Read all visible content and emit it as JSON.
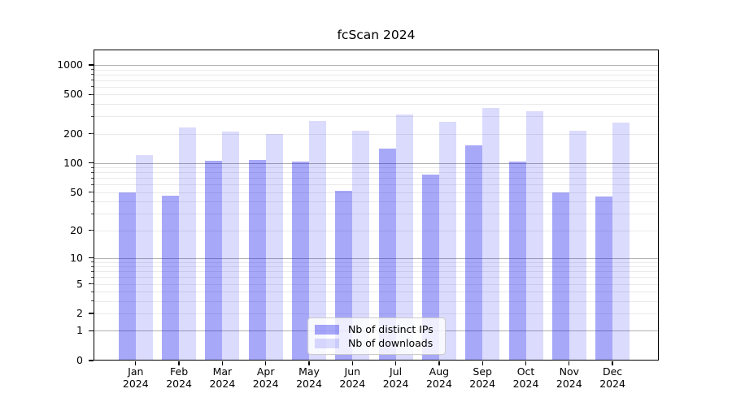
{
  "chart_data": {
    "type": "bar",
    "title": "fcScan 2024",
    "x": [
      "Jan",
      "Feb",
      "Mar",
      "Apr",
      "May",
      "Jun",
      "Jul",
      "Aug",
      "Sep",
      "Oct",
      "Nov",
      "Dec"
    ],
    "x_year_suffix": "2024",
    "series": [
      {
        "name": "Nb of distinct IPs",
        "color": "rgba(0,0,238,0.34)",
        "color_hex_on_white": "#a8a8f4",
        "values": [
          50,
          46,
          106,
          108,
          104,
          52,
          140,
          76,
          151,
          103,
          50,
          45
        ]
      },
      {
        "name": "Nb of downloads",
        "color": "rgba(0,0,238,0.14)",
        "color_hex_on_white": "#dcdcf9",
        "values": [
          121,
          232,
          209,
          200,
          270,
          214,
          313,
          264,
          362,
          340,
          216,
          259
        ]
      }
    ],
    "y_axis": {
      "scale": "log10(value+1)",
      "tick_values": [
        1000,
        500,
        200,
        100,
        50,
        20,
        10,
        5,
        2,
        1,
        0
      ],
      "major_grid_values": [
        1,
        10,
        100,
        1000
      ],
      "top_value": 1000,
      "ylim": [
        0,
        1400
      ]
    },
    "xlabel": "",
    "ylabel": "",
    "grid": true,
    "legend": {
      "position": "lower-center"
    },
    "colors": {
      "major_grid": "#b0b0b0",
      "minor_grid": "#eaeaea",
      "axis": "#000000",
      "background": "#ffffff",
      "text": "#000000"
    }
  }
}
